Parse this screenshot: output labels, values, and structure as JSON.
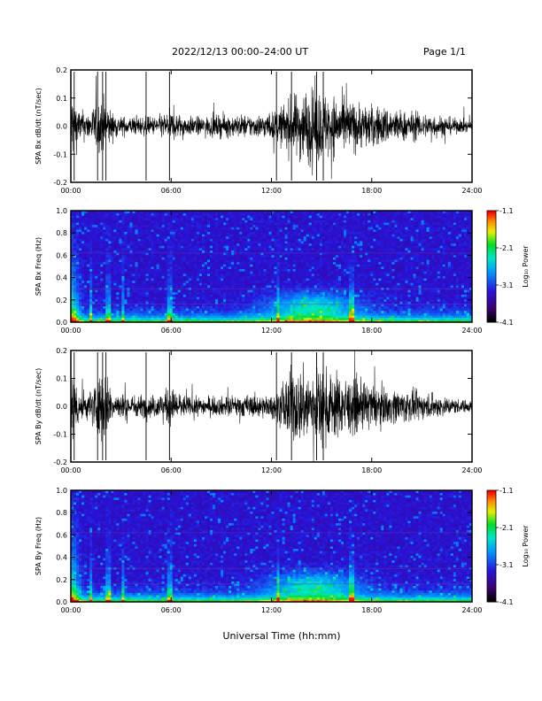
{
  "header": {
    "title": "2022/12/13  00:00–24:00 UT",
    "page": "Page 1/1"
  },
  "xlabel": "Universal Time (hh:mm)",
  "chart_data": [
    {
      "type": "line",
      "ylabel": "SPA Bx dB/dt (nT/sec)",
      "xlim": [
        0,
        24
      ],
      "ylim": [
        -0.2,
        0.2
      ],
      "xticks": [
        "00:00",
        "06:00",
        "12:00",
        "18:00",
        "24:00"
      ],
      "yticks": [
        "-0.2",
        "-0.1",
        "0.0",
        "0.1",
        "0.2"
      ],
      "envelope": {
        "hours": [
          0,
          0.5,
          1,
          1.5,
          2,
          2.5,
          3,
          4,
          5,
          6,
          7,
          8,
          9,
          10,
          11,
          12,
          12.5,
          13,
          14,
          15,
          16,
          17,
          18,
          19,
          20,
          21,
          22,
          23,
          24
        ],
        "amplitude": [
          0.2,
          0.09,
          0.07,
          0.12,
          0.15,
          0.07,
          0.05,
          0.05,
          0.05,
          0.08,
          0.05,
          0.05,
          0.06,
          0.06,
          0.06,
          0.07,
          0.1,
          0.14,
          0.2,
          0.19,
          0.15,
          0.13,
          0.11,
          0.1,
          0.08,
          0.07,
          0.06,
          0.04,
          0.03
        ]
      }
    },
    {
      "type": "heatmap",
      "ylabel": "SPA Bx Freq (Hz)",
      "xlim": [
        0,
        24
      ],
      "ylim": [
        0,
        1.0
      ],
      "xticks": [
        "00:00",
        "06:00",
        "12:00",
        "18:00",
        "24:00"
      ],
      "yticks": [
        "0.0",
        "0.2",
        "0.4",
        "0.6",
        "0.8",
        "1.0"
      ],
      "colorbar": {
        "label": "Log₁₀ Power",
        "ticks": [
          "-1.1",
          "-2.1",
          "-3.1",
          "-4.1"
        ],
        "range": [
          -4.1,
          -1.1
        ]
      }
    },
    {
      "type": "line",
      "ylabel": "SPA By dB/dt (nT/sec)",
      "xlim": [
        0,
        24
      ],
      "ylim": [
        -0.2,
        0.2
      ],
      "xticks": [
        "00:00",
        "06:00",
        "12:00",
        "18:00",
        "24:00"
      ],
      "yticks": [
        "-0.2",
        "-0.1",
        "0.0",
        "0.1",
        "0.2"
      ],
      "envelope": {
        "hours": [
          0,
          0.5,
          1,
          1.5,
          2,
          2.5,
          3,
          4,
          5,
          6,
          7,
          8,
          9,
          10,
          11,
          12,
          12.5,
          13,
          14,
          15,
          16,
          17,
          18,
          19,
          20,
          21,
          22,
          23,
          24
        ],
        "amplitude": [
          0.2,
          0.1,
          0.07,
          0.14,
          0.2,
          0.08,
          0.07,
          0.06,
          0.06,
          0.1,
          0.05,
          0.05,
          0.05,
          0.06,
          0.06,
          0.06,
          0.09,
          0.19,
          0.2,
          0.2,
          0.17,
          0.14,
          0.12,
          0.09,
          0.09,
          0.07,
          0.06,
          0.04,
          0.03
        ]
      }
    },
    {
      "type": "heatmap",
      "ylabel": "SPA By Freq (Hz)",
      "xlim": [
        0,
        24
      ],
      "ylim": [
        0,
        1.0
      ],
      "xticks": [
        "00:00",
        "06:00",
        "12:00",
        "18:00",
        "24:00"
      ],
      "yticks": [
        "0.0",
        "0.2",
        "0.4",
        "0.6",
        "0.8",
        "1.0"
      ],
      "colorbar": {
        "label": "Log₁₀ Power",
        "ticks": [
          "-1.1",
          "-2.1",
          "-3.1",
          "-4.1"
        ],
        "range": [
          -4.1,
          -1.1
        ]
      }
    }
  ]
}
